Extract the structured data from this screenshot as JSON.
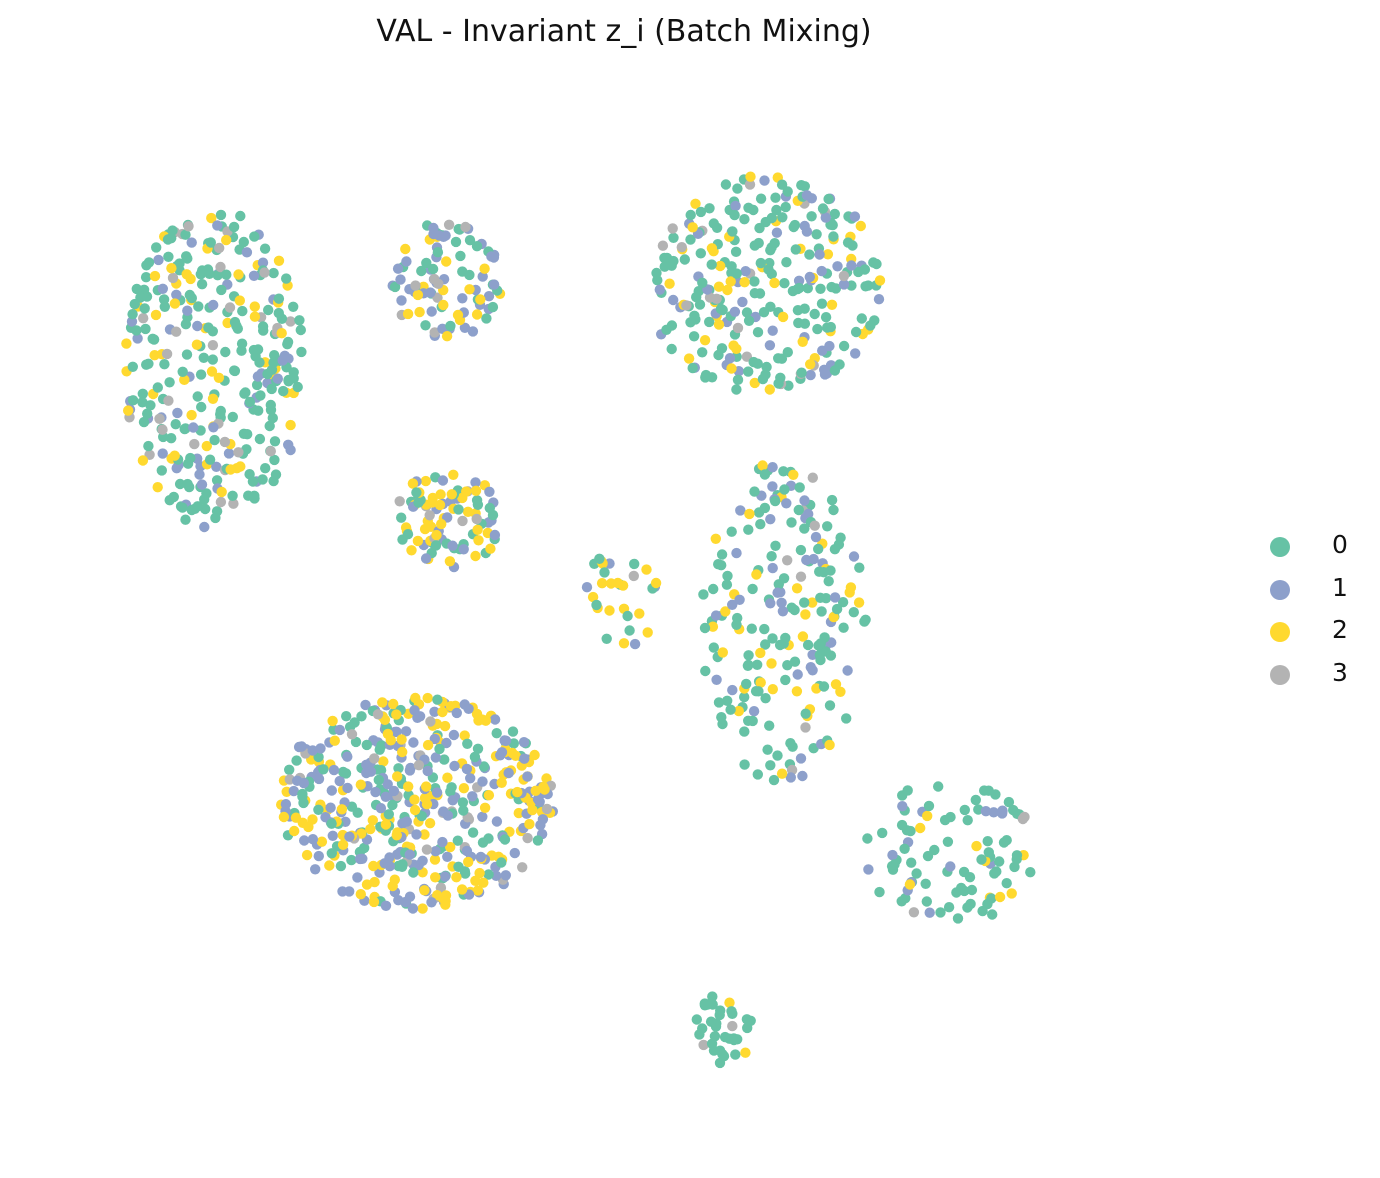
{
  "chart_data": {
    "type": "scatter",
    "title": "VAL - Invariant z_i (Batch Mixing)",
    "xlabel": "",
    "ylabel": "",
    "axes_visible": false,
    "grid": false,
    "legend_position": "right",
    "xlim": [
      0,
      100
    ],
    "ylim": [
      0,
      100
    ],
    "series": [
      {
        "name": "0",
        "color": "#66c2a5"
      },
      {
        "name": "1",
        "color": "#8da0cb"
      },
      {
        "name": "2",
        "color": "#ffd92f"
      },
      {
        "name": "3",
        "color": "#b3b3b3"
      }
    ],
    "clusters": [
      {
        "cx": 13.6,
        "cy": 73.4,
        "rx": 8.0,
        "ry": 15.5,
        "n": 330,
        "mix": [
          0.55,
          0.2,
          0.17,
          0.08
        ]
      },
      {
        "cx": 33.9,
        "cy": 81.8,
        "rx": 4.8,
        "ry": 6.0,
        "n": 95,
        "mix": [
          0.35,
          0.35,
          0.23,
          0.07
        ]
      },
      {
        "cx": 61.9,
        "cy": 81.6,
        "rx": 10.3,
        "ry": 10.6,
        "n": 280,
        "mix": [
          0.6,
          0.15,
          0.18,
          0.07
        ]
      },
      {
        "cx": 34.0,
        "cy": 58.7,
        "rx": 4.8,
        "ry": 4.7,
        "n": 95,
        "mix": [
          0.3,
          0.25,
          0.38,
          0.07
        ]
      },
      {
        "cx": 63.3,
        "cy": 49.0,
        "rx": 7.4,
        "ry": 15.6,
        "n": 210,
        "mix": [
          0.58,
          0.22,
          0.16,
          0.04
        ]
      },
      {
        "cx": 49.6,
        "cy": 52.5,
        "rx": 3.6,
        "ry": 6.3,
        "n": 30,
        "mix": [
          0.3,
          0.12,
          0.52,
          0.06
        ]
      },
      {
        "cx": 31.2,
        "cy": 31.2,
        "rx": 12.1,
        "ry": 10.3,
        "n": 480,
        "mix": [
          0.26,
          0.34,
          0.33,
          0.07
        ]
      },
      {
        "cx": 78.1,
        "cy": 26.5,
        "rx": 7.5,
        "ry": 7.1,
        "n": 95,
        "mix": [
          0.62,
          0.2,
          0.12,
          0.06
        ]
      },
      {
        "cx": 58.3,
        "cy": 9.5,
        "rx": 2.5,
        "ry": 4.2,
        "n": 35,
        "mix": [
          0.75,
          0.08,
          0.07,
          0.1
        ]
      }
    ]
  }
}
